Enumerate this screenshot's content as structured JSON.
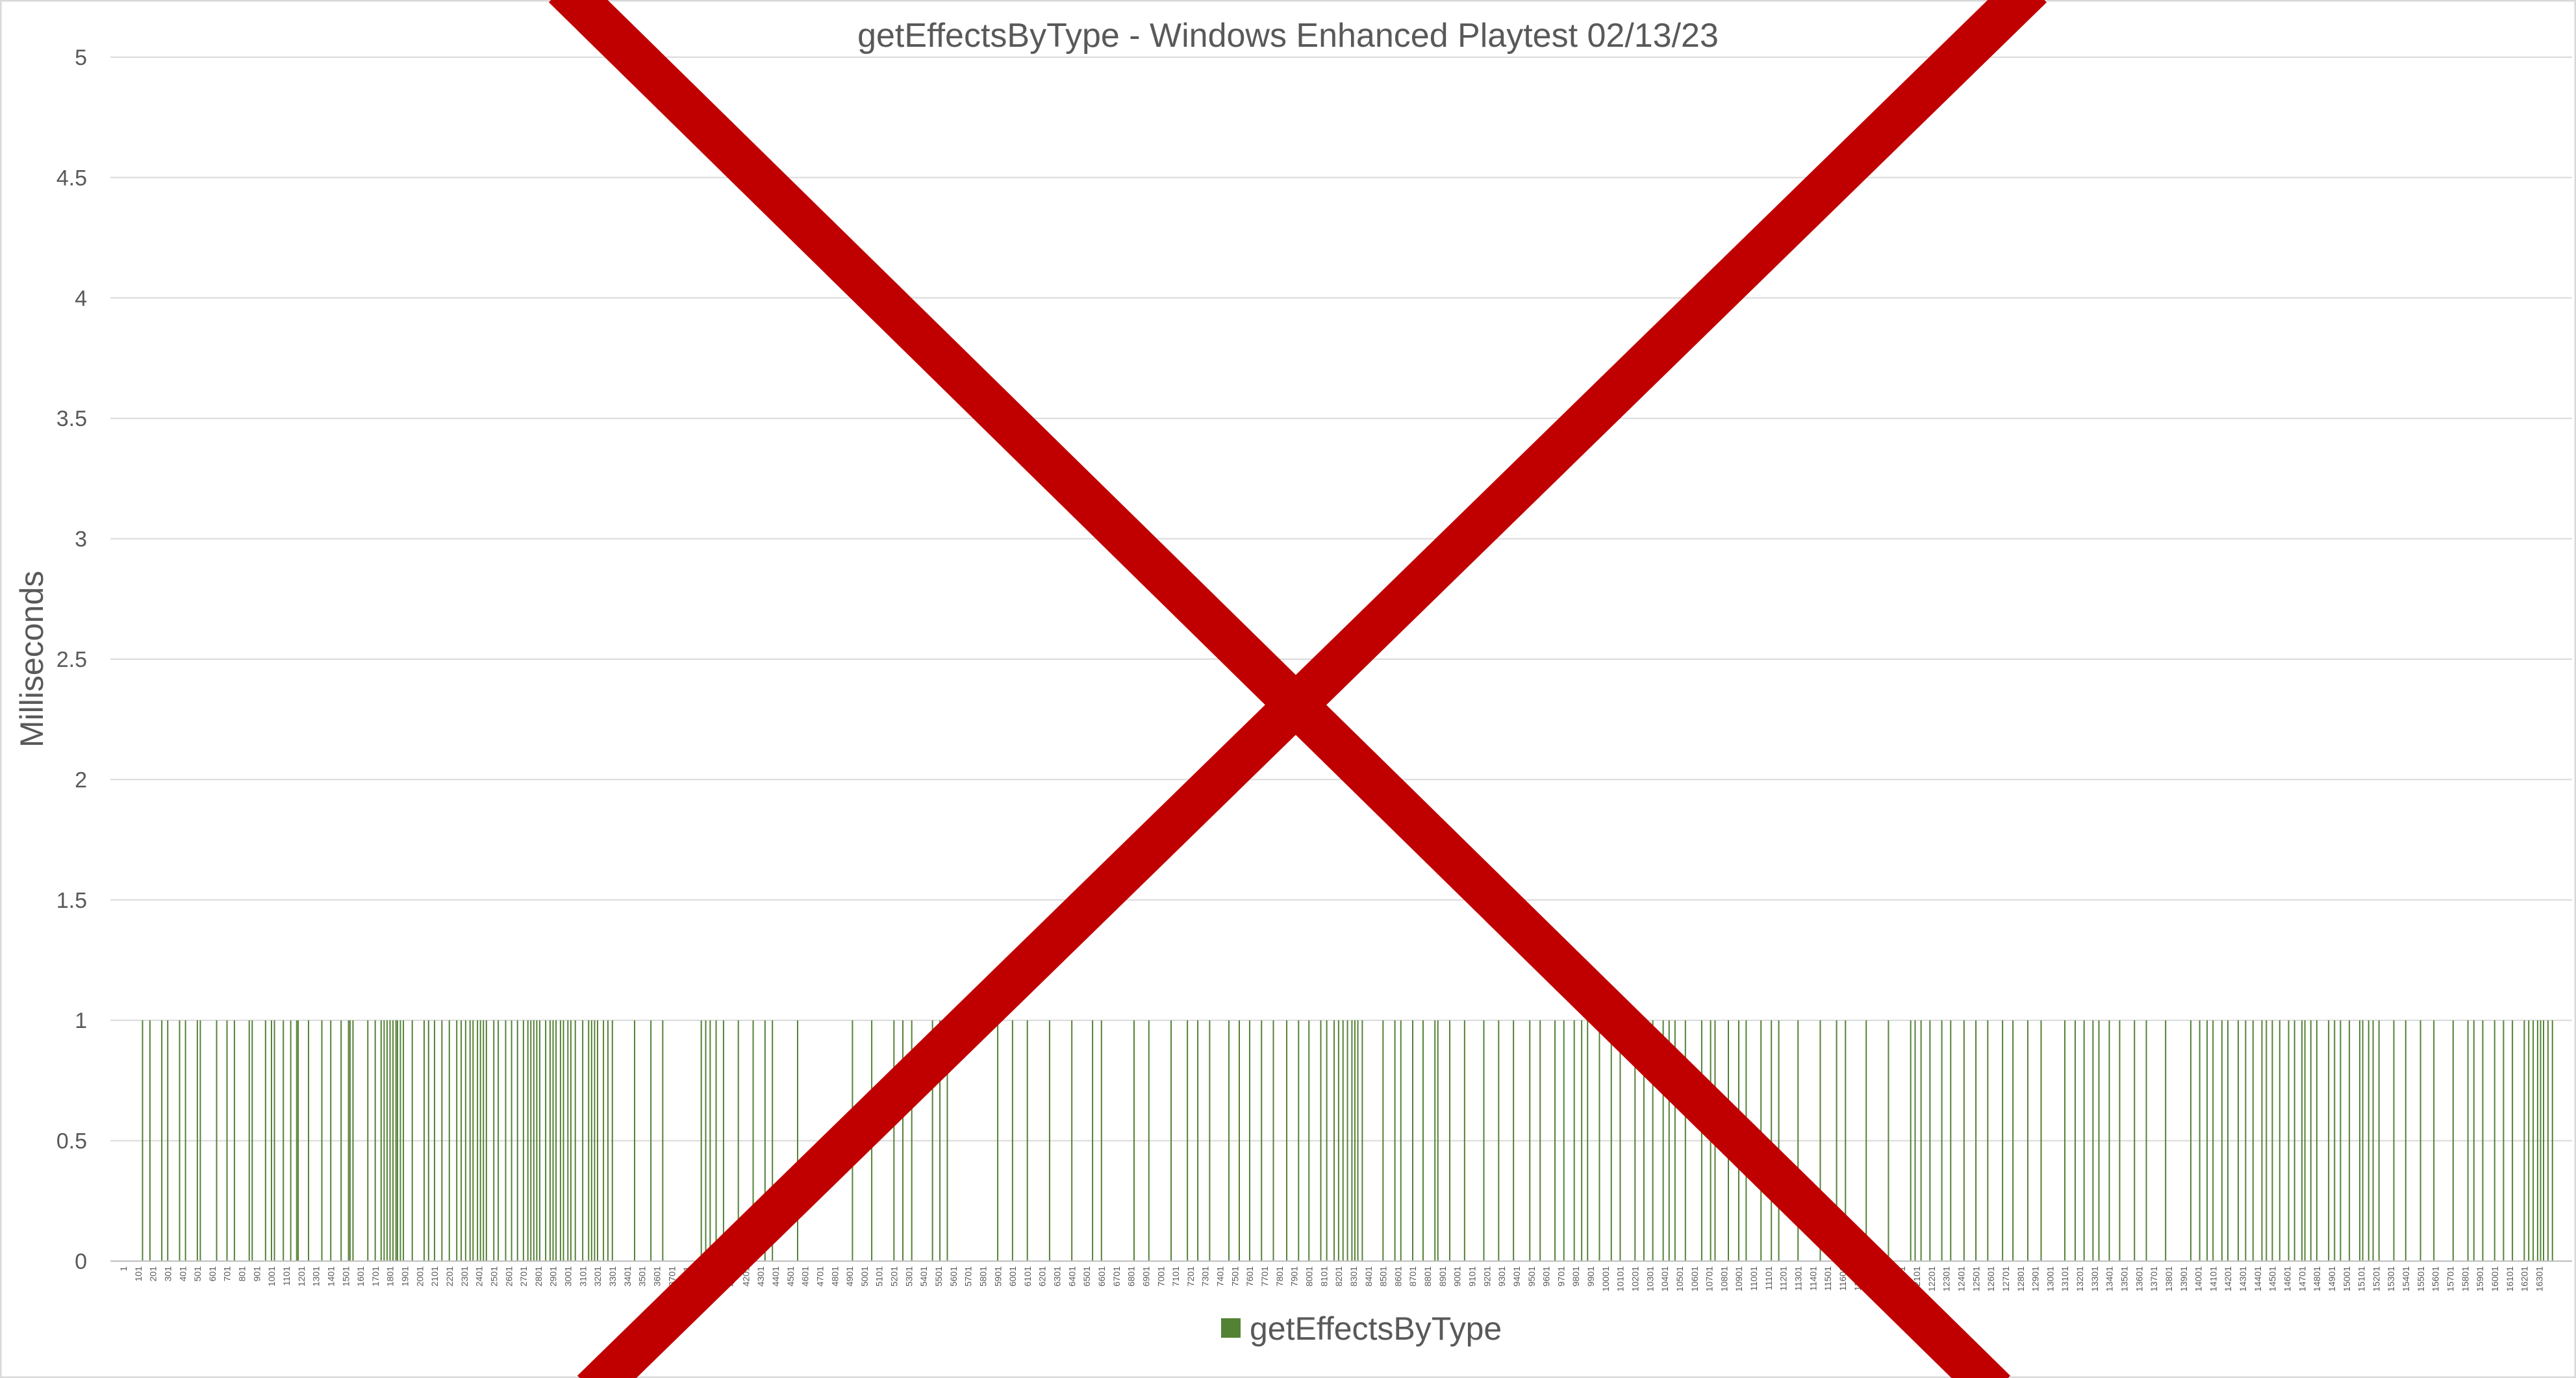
{
  "chart_data": {
    "type": "bar",
    "title": "getEffectsByType - Windows Enhanced Playtest 02/13/23",
    "xlabel": "",
    "ylabel": "Milliseconds",
    "ylim": [
      0,
      5
    ],
    "yticks": [
      "0",
      "0.5",
      "1",
      "1.5",
      "2",
      "2.5",
      "3",
      "3.5",
      "4",
      "4.5",
      "5"
    ],
    "xlim": [
      1,
      16400
    ],
    "xtick_interval": 100,
    "xtick_start": 1,
    "grid": true,
    "legend": "bottom",
    "series": [
      {
        "name": "getEffectsByType",
        "color": "#548235",
        "note_values": "all plotted samples equal 1 ms; x lists sample indices with a value of 1",
        "value": 1,
        "x": [
          130,
          180,
          260,
          300,
          380,
          420,
          500,
          520,
          630,
          700,
          750,
          850,
          870,
          960,
          1000,
          1020,
          1080,
          1130,
          1170,
          1180,
          1250,
          1340,
          1400,
          1470,
          1520,
          1530,
          1550,
          1650,
          1700,
          1740,
          1760,
          1780,
          1800,
          1820,
          1840,
          1850,
          1870,
          1890,
          1950,
          2030,
          2060,
          2100,
          2150,
          2200,
          2250,
          2280,
          2310,
          2340,
          2360,
          2390,
          2410,
          2430,
          2450,
          2500,
          2530,
          2580,
          2620,
          2660,
          2700,
          2730,
          2750,
          2770,
          2790,
          2810,
          2850,
          2880,
          2900,
          2920,
          2950,
          2970,
          3000,
          3020,
          3050,
          3100,
          3140,
          3160,
          3180,
          3200,
          3240,
          3270,
          3300,
          3450,
          3560,
          3640,
          3900,
          3930,
          3960,
          4000,
          4050,
          4150,
          4250,
          4330,
          4380,
          4550,
          4920,
          5050,
          5200,
          5260,
          5320,
          5460,
          5510,
          5560,
          5900,
          6000,
          6100,
          6250,
          6400,
          6540,
          6600,
          6820,
          6920,
          7070,
          7180,
          7250,
          7330,
          7460,
          7530,
          7600,
          7680,
          7760,
          7850,
          7930,
          8000,
          8080,
          8120,
          8170,
          8200,
          8230,
          8260,
          8290,
          8310,
          8330,
          8360,
          8500,
          8580,
          8620,
          8700,
          8770,
          8850,
          8870,
          8950,
          9050,
          9180,
          9280,
          9380,
          9490,
          9560,
          9660,
          9720,
          9790,
          9840,
          9880,
          9960,
          10040,
          10100,
          10200,
          10260,
          10320,
          10390,
          10430,
          10470,
          10540,
          10650,
          10710,
          10740,
          10830,
          10900,
          10950,
          11050,
          11120,
          11170,
          11300,
          11450,
          11560,
          11620,
          11760,
          11910,
          12060,
          12090,
          12130,
          12190,
          12270,
          12330,
          12420,
          12500,
          12580,
          12680,
          12750,
          12850,
          12940,
          13100,
          13170,
          13230,
          13290,
          13330,
          13400,
          13470,
          13570,
          13650,
          13780,
          13950,
          14010,
          14060,
          14100,
          14160,
          14200,
          14270,
          14320,
          14370,
          14430,
          14460,
          14500,
          14550,
          14610,
          14650,
          14700,
          14720,
          14760,
          14800,
          14880,
          14920,
          14960,
          15020,
          15090,
          15110,
          15150,
          15180,
          15220,
          15320,
          15400,
          15500,
          15590,
          15720,
          15820,
          15860,
          15920,
          16000,
          16060,
          16120,
          16200,
          16230,
          16260,
          16290,
          16310,
          16330,
          16360,
          16390
        ]
      }
    ]
  },
  "overlay": {
    "symbol": "cross-out",
    "color": "#C00000"
  }
}
